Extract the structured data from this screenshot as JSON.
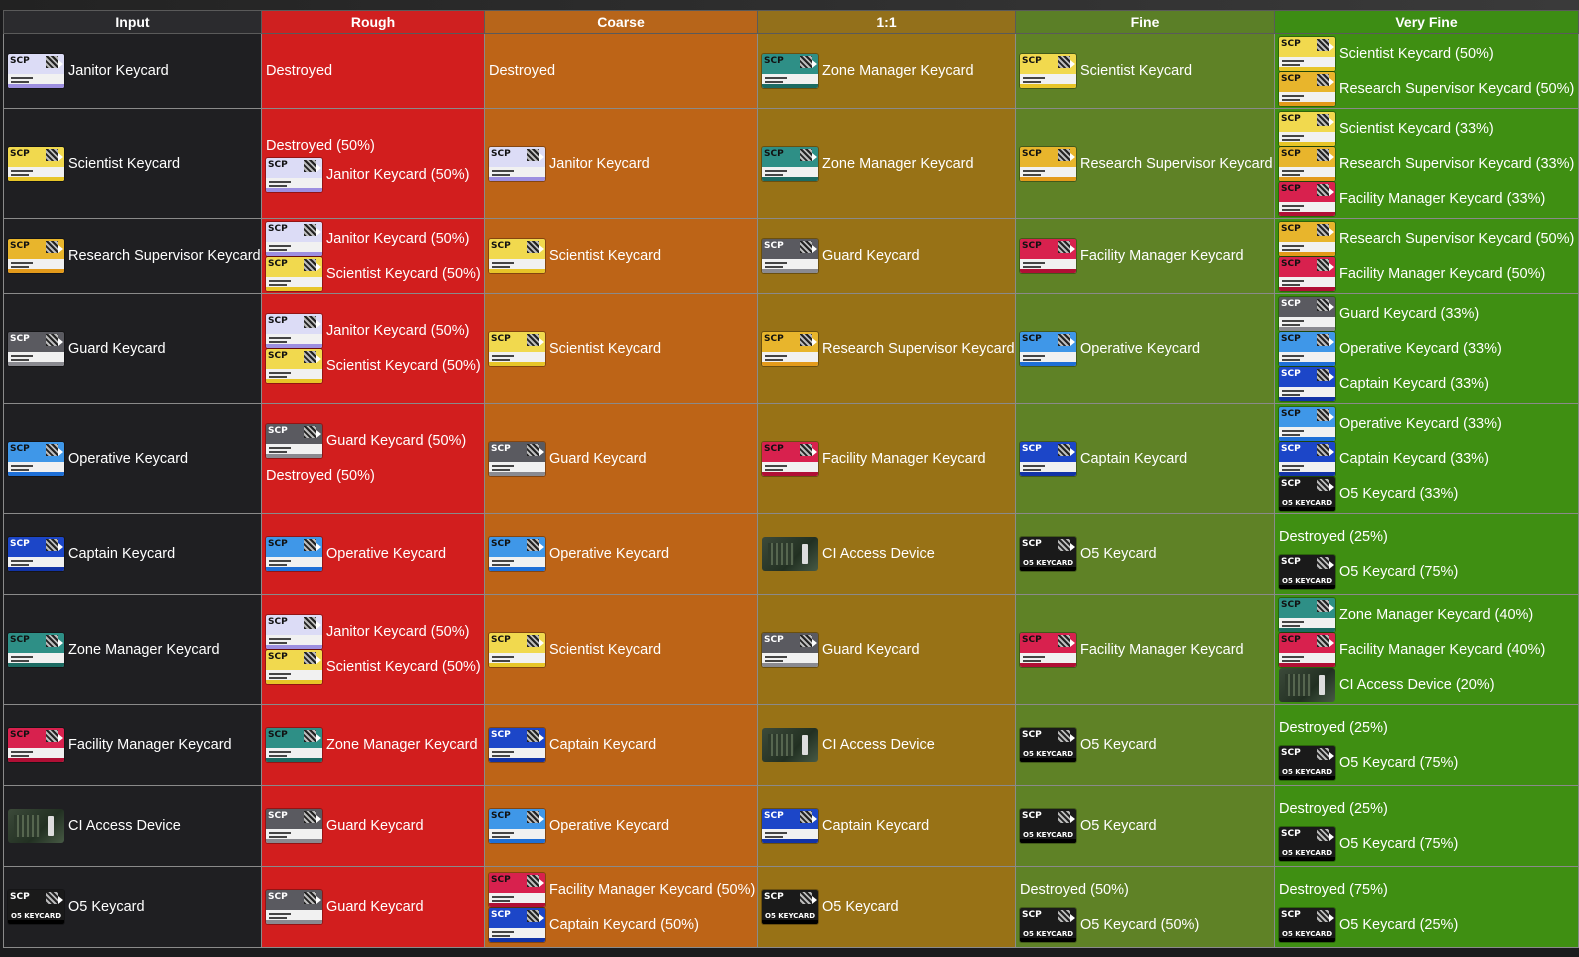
{
  "headers": [
    "Input",
    "Rough",
    "Coarse",
    "1:1",
    "Fine",
    "Very Fine"
  ],
  "card_types": {
    "janitor": {
      "band": "#dcdcf6",
      "stripe": "#9d8fe0",
      "icon": "janitor-keycard-icon"
    },
    "scientist": {
      "band": "#f1d94e",
      "stripe": "#e7c528",
      "icon": "scientist-keycard-icon"
    },
    "research": {
      "band": "#e8b52c",
      "stripe": "#e39a1b",
      "icon": "research-supervisor-keycard-icon"
    },
    "guard": {
      "band": "#5a5a60",
      "stripe": "#8a8a90",
      "icon": "guard-keycard-icon"
    },
    "operative": {
      "band": "#3f97e8",
      "stripe": "#1e6fd6",
      "icon": "operative-keycard-icon"
    },
    "captain": {
      "band": "#1c46c8",
      "stripe": "#1233a6",
      "icon": "captain-keycard-icon"
    },
    "zone": {
      "band": "#2e8f86",
      "stripe": "#1c6b63",
      "icon": "zone-manager-keycard-icon"
    },
    "facility": {
      "band": "#d8214e",
      "stripe": "#b00f35",
      "icon": "facility-manager-keycard-icon"
    },
    "o5": {
      "band": "#1a1a1a",
      "stripe": "#000000",
      "icon": "o5-keycard-icon"
    },
    "device": {
      "icon": "ci-access-device-icon"
    }
  },
  "rows": [
    {
      "input": {
        "k": "janitor",
        "t": "Janitor Keycard"
      },
      "rough": [
        {
          "t": "Destroyed"
        }
      ],
      "coarse": [
        {
          "t": "Destroyed"
        }
      ],
      "one": [
        {
          "k": "zone",
          "t": "Zone Manager Keycard"
        }
      ],
      "fine": [
        {
          "k": "scientist",
          "t": "Scientist Keycard"
        }
      ],
      "vfine": [
        {
          "k": "scientist",
          "t": "Scientist Keycard (50%)"
        },
        {
          "k": "research",
          "t": "Research Supervisor Keycard (50%)"
        }
      ]
    },
    {
      "input": {
        "k": "scientist",
        "t": "Scientist Keycard"
      },
      "rough": [
        {
          "t": "Destroyed (50%)",
          "small": true
        },
        {
          "k": "janitor",
          "t": "Janitor Keycard (50%)"
        }
      ],
      "coarse": [
        {
          "k": "janitor",
          "t": "Janitor Keycard"
        }
      ],
      "one": [
        {
          "k": "zone",
          "t": "Zone Manager Keycard"
        }
      ],
      "fine": [
        {
          "k": "research",
          "t": "Research Supervisor Keycard"
        }
      ],
      "vfine": [
        {
          "k": "scientist",
          "t": "Scientist Keycard (33%)"
        },
        {
          "k": "research",
          "t": "Research Supervisor Keycard (33%)"
        },
        {
          "k": "facility",
          "t": "Facility Manager Keycard (33%)"
        }
      ]
    },
    {
      "input": {
        "k": "research",
        "t": "Research Supervisor Keycard"
      },
      "rough": [
        {
          "k": "janitor",
          "t": "Janitor Keycard (50%)"
        },
        {
          "k": "scientist",
          "t": "Scientist Keycard (50%)"
        }
      ],
      "coarse": [
        {
          "k": "scientist",
          "t": "Scientist Keycard"
        }
      ],
      "one": [
        {
          "k": "guard",
          "t": "Guard Keycard"
        }
      ],
      "fine": [
        {
          "k": "facility",
          "t": "Facility Manager Keycard"
        }
      ],
      "vfine": [
        {
          "k": "research",
          "t": "Research Supervisor Keycard (50%)"
        },
        {
          "k": "facility",
          "t": "Facility Manager Keycard (50%)"
        }
      ]
    },
    {
      "input": {
        "k": "guard",
        "t": "Guard Keycard"
      },
      "rough": [
        {
          "k": "janitor",
          "t": "Janitor Keycard (50%)"
        },
        {
          "k": "scientist",
          "t": "Scientist Keycard (50%)"
        }
      ],
      "coarse": [
        {
          "k": "scientist",
          "t": "Scientist Keycard"
        }
      ],
      "one": [
        {
          "k": "research",
          "t": "Research Supervisor Keycard"
        }
      ],
      "fine": [
        {
          "k": "operative",
          "t": "Operative Keycard"
        }
      ],
      "vfine": [
        {
          "k": "guard",
          "t": "Guard Keycard (33%)"
        },
        {
          "k": "operative",
          "t": "Operative Keycard (33%)"
        },
        {
          "k": "captain",
          "t": "Captain Keycard (33%)"
        }
      ]
    },
    {
      "input": {
        "k": "operative",
        "t": "Operative Keycard"
      },
      "rough": [
        {
          "k": "guard",
          "t": "Guard Keycard (50%)"
        },
        {
          "t": "Destroyed (50%)"
        }
      ],
      "coarse": [
        {
          "k": "guard",
          "t": "Guard Keycard"
        }
      ],
      "one": [
        {
          "k": "facility",
          "t": "Facility Manager Keycard"
        }
      ],
      "fine": [
        {
          "k": "captain",
          "t": "Captain Keycard"
        }
      ],
      "vfine": [
        {
          "k": "operative",
          "t": "Operative Keycard (33%)"
        },
        {
          "k": "captain",
          "t": "Captain Keycard (33%)"
        },
        {
          "k": "o5",
          "t": "O5 Keycard (33%)"
        }
      ]
    },
    {
      "input": {
        "k": "captain",
        "t": "Captain Keycard"
      },
      "rough": [
        {
          "k": "operative",
          "t": "Operative Keycard"
        }
      ],
      "coarse": [
        {
          "k": "operative",
          "t": "Operative Keycard"
        }
      ],
      "one": [
        {
          "k": "device",
          "t": "CI Access Device"
        }
      ],
      "fine": [
        {
          "k": "o5",
          "t": "O5 Keycard"
        }
      ],
      "vfine": [
        {
          "t": "Destroyed (25%)"
        },
        {
          "k": "o5",
          "t": "O5 Keycard (75%)"
        }
      ]
    },
    {
      "input": {
        "k": "zone",
        "t": "Zone Manager Keycard"
      },
      "rough": [
        {
          "k": "janitor",
          "t": "Janitor Keycard (50%)"
        },
        {
          "k": "scientist",
          "t": "Scientist Keycard (50%)"
        }
      ],
      "coarse": [
        {
          "k": "scientist",
          "t": "Scientist Keycard"
        }
      ],
      "one": [
        {
          "k": "guard",
          "t": "Guard Keycard"
        }
      ],
      "fine": [
        {
          "k": "facility",
          "t": "Facility Manager Keycard"
        }
      ],
      "vfine": [
        {
          "k": "zone",
          "t": "Zone Manager Keycard (40%)"
        },
        {
          "k": "facility",
          "t": "Facility Manager Keycard (40%)"
        },
        {
          "k": "device",
          "t": "CI Access Device (20%)"
        }
      ]
    },
    {
      "input": {
        "k": "facility",
        "t": "Facility Manager Keycard"
      },
      "rough": [
        {
          "k": "zone",
          "t": "Zone Manager Keycard"
        }
      ],
      "coarse": [
        {
          "k": "captain",
          "t": "Captain Keycard"
        }
      ],
      "one": [
        {
          "k": "device",
          "t": "CI Access Device"
        }
      ],
      "fine": [
        {
          "k": "o5",
          "t": "O5 Keycard"
        }
      ],
      "vfine": [
        {
          "t": "Destroyed (25%)"
        },
        {
          "k": "o5",
          "t": "O5 Keycard (75%)"
        }
      ]
    },
    {
      "input": {
        "k": "device",
        "t": "CI Access Device"
      },
      "rough": [
        {
          "k": "guard",
          "t": "Guard Keycard"
        }
      ],
      "coarse": [
        {
          "k": "operative",
          "t": "Operative Keycard"
        }
      ],
      "one": [
        {
          "k": "captain",
          "t": "Captain Keycard"
        }
      ],
      "fine": [
        {
          "k": "o5",
          "t": "O5 Keycard"
        }
      ],
      "vfine": [
        {
          "t": "Destroyed (25%)"
        },
        {
          "k": "o5",
          "t": "O5 Keycard (75%)"
        }
      ]
    },
    {
      "input": {
        "k": "o5",
        "t": "O5 Keycard"
      },
      "rough": [
        {
          "k": "guard",
          "t": "Guard Keycard"
        }
      ],
      "coarse": [
        {
          "k": "facility",
          "t": "Facility Manager Keycard (50%)"
        },
        {
          "k": "captain",
          "t": "Captain Keycard (50%)"
        }
      ],
      "one": [
        {
          "k": "o5",
          "t": "O5 Keycard"
        }
      ],
      "fine": [
        {
          "t": "Destroyed (50%)"
        },
        {
          "k": "o5",
          "t": "O5 Keycard (50%)"
        }
      ],
      "vfine": [
        {
          "t": "Destroyed (75%)"
        },
        {
          "k": "o5",
          "t": "O5 Keycard (25%)"
        }
      ]
    }
  ],
  "labels": {
    "scp": "SCP",
    "o5_card": "O5 KEYCARD"
  }
}
